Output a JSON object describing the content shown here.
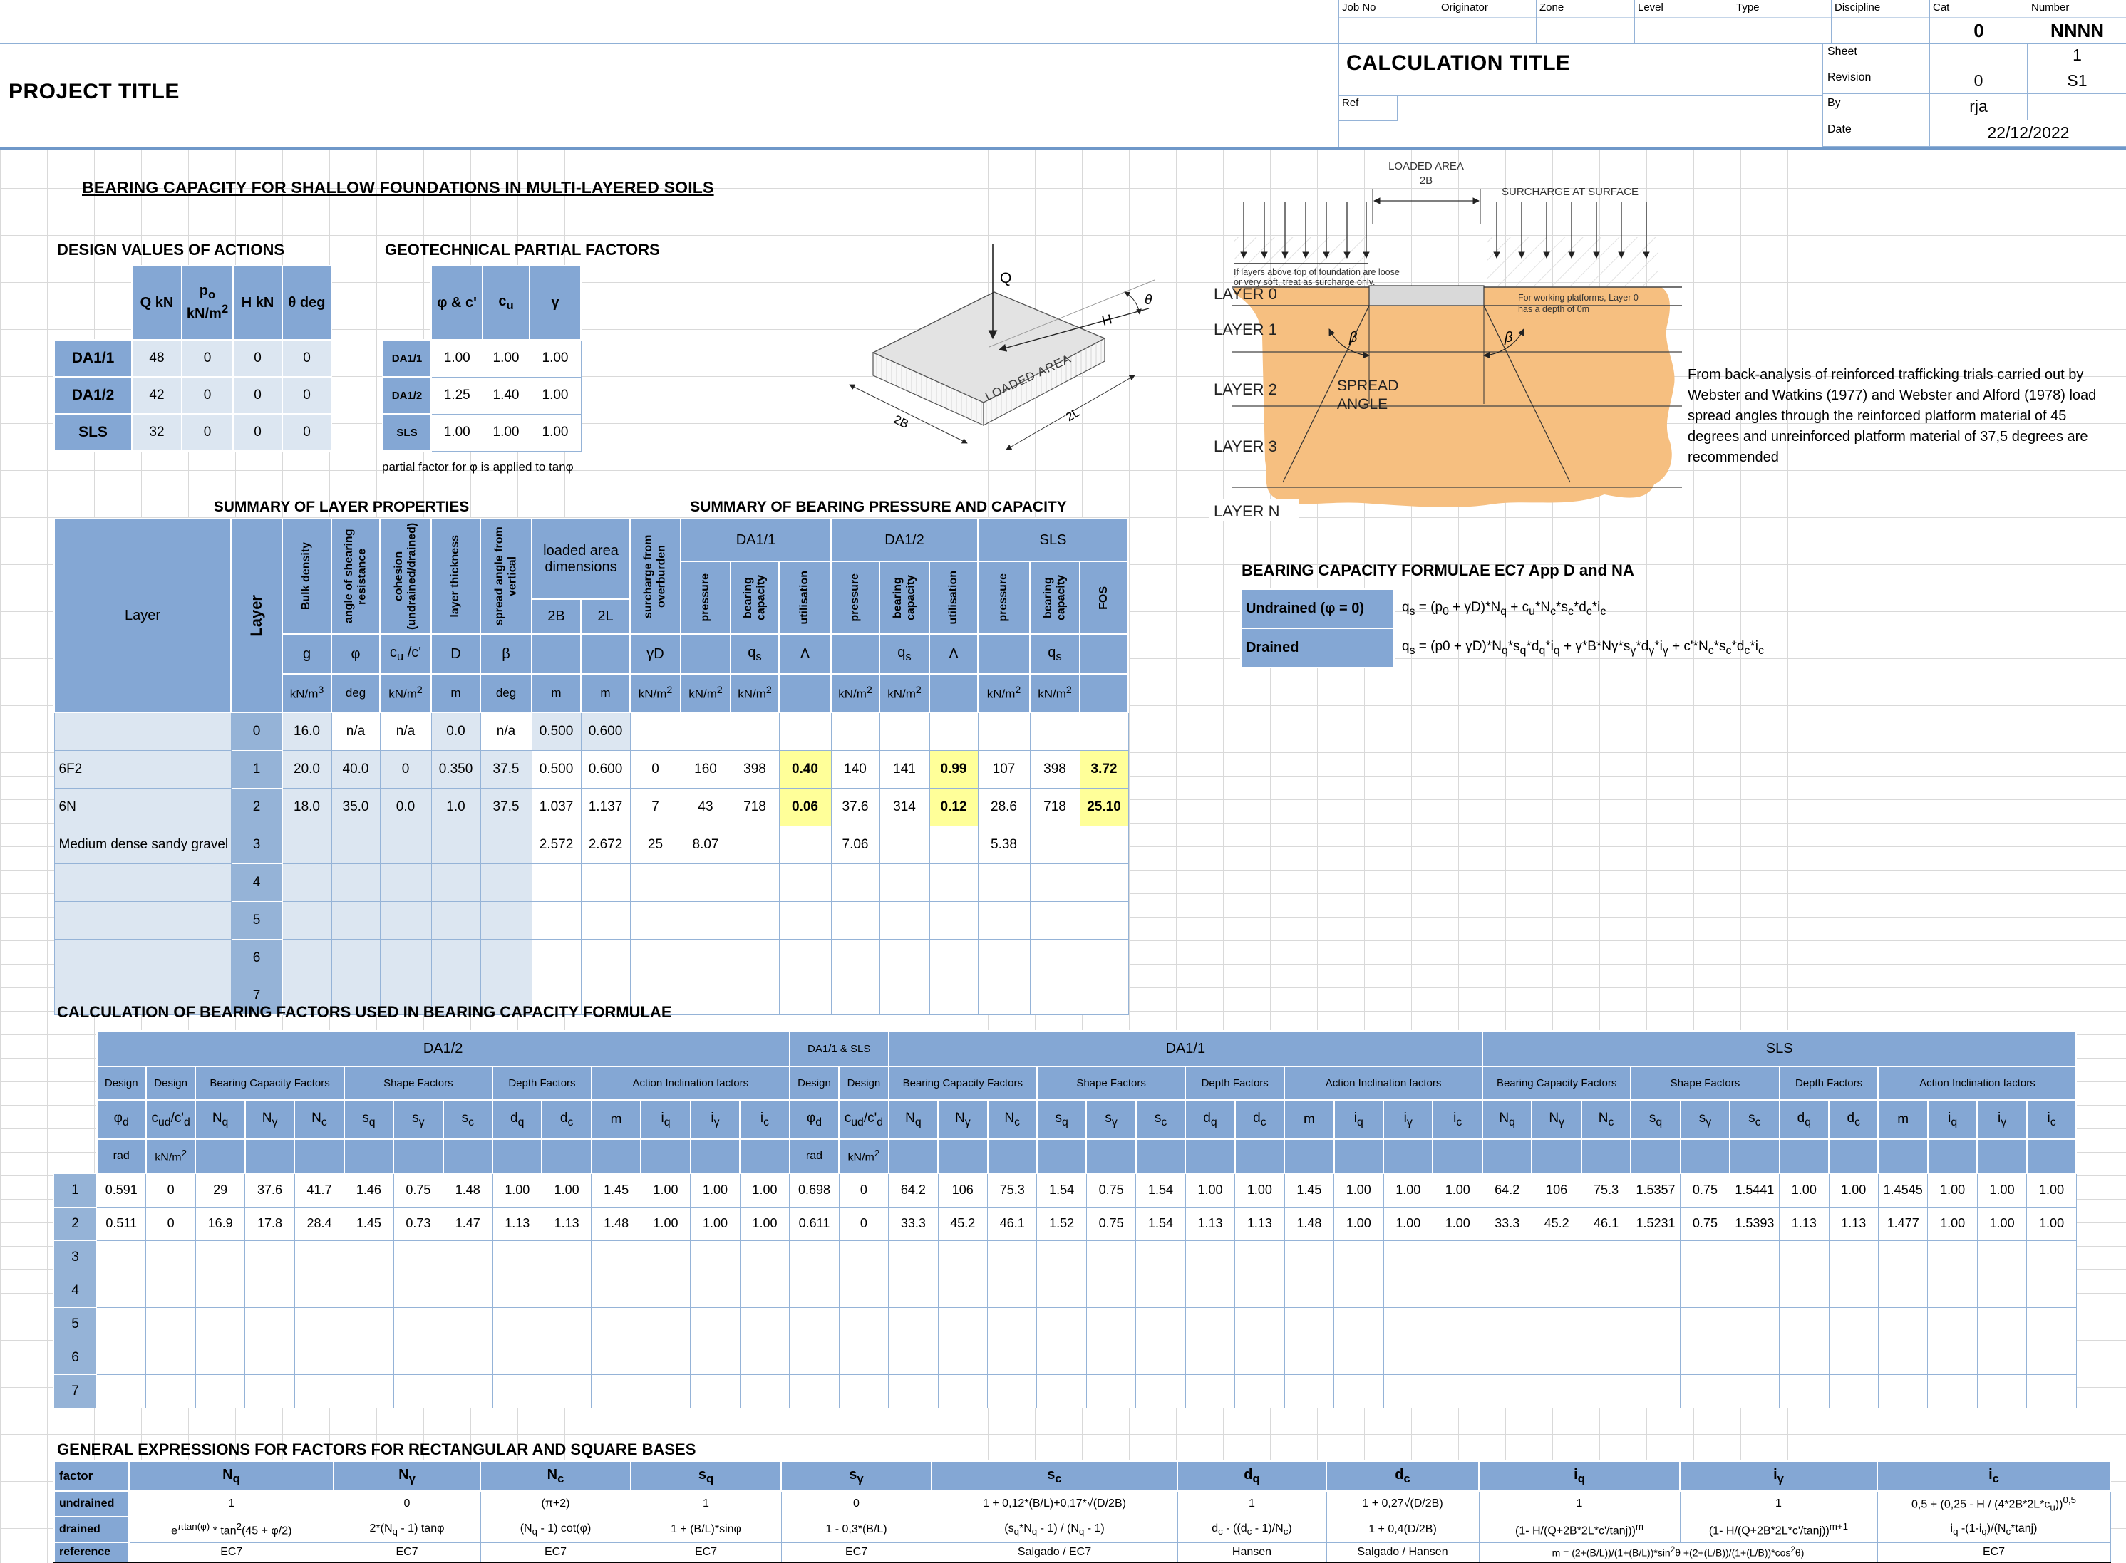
{
  "header": {
    "project_title": "PROJECT TITLE",
    "calculation_title": "CALCULATION TITLE",
    "fields": [
      "Job No",
      "Originator",
      "Zone",
      "Level",
      "Type",
      "Discipline",
      "Cat",
      "Number"
    ],
    "cat_value": "0",
    "number_value": "NNNN",
    "sheet_label": "Sheet",
    "sheet_value": "1",
    "revision_label": "Revision",
    "revision_value": "0",
    "revision_code": "S1",
    "ref_label": "Ref",
    "by_label": "By",
    "by_value": "rja",
    "date_label": "Date",
    "date_value": "22/12/2022"
  },
  "main_title": "BEARING CAPACITY FOR SHALLOW FOUNDATIONS IN MULTI-LAYERED SOILS",
  "actions": {
    "title": "DESIGN VALUES OF ACTIONS",
    "col_headers": [
      "Q kN",
      "p<sub>o</sub><br>kN/m<sup>2</sup>",
      "H kN",
      "θ deg"
    ],
    "rows": [
      {
        "label": "DA1/1",
        "values": [
          "48",
          "0",
          "0",
          "0"
        ]
      },
      {
        "label": "DA1/2",
        "values": [
          "42",
          "0",
          "0",
          "0"
        ]
      },
      {
        "label": "SLS",
        "values": [
          "32",
          "0",
          "0",
          "0"
        ]
      }
    ]
  },
  "partial_factors": {
    "title": "GEOTECHNICAL PARTIAL FACTORS",
    "col_headers": [
      "φ & c'",
      "c<sub>u</sub>",
      "γ"
    ],
    "rows": [
      {
        "label": "DA1/1",
        "values": [
          "1.00",
          "1.00",
          "1.00"
        ]
      },
      {
        "label": "DA1/2",
        "values": [
          "1.25",
          "1.40",
          "1.00"
        ]
      },
      {
        "label": "SLS",
        "values": [
          "1.00",
          "1.00",
          "1.00"
        ]
      }
    ],
    "note": "partial factor for φ is applied to tanφ"
  },
  "iso_diagram": {
    "load": "Q",
    "horizontal": "H",
    "angle": "θ",
    "area_label": "LOADED AREA",
    "dim_width": "2B",
    "dim_length": "2L"
  },
  "layers_diagram": {
    "loaded_area_label": "LOADED AREA",
    "dim_label": "2B",
    "surcharge_label": "SURCHARGE AT SURFACE",
    "note_left_1": "If layers above top of foundation are loose",
    "note_left_2": "or very soft, treat as surcharge only.",
    "note_right_1": "For working platforms, Layer 0",
    "note_right_2": "has a depth of 0m",
    "spread_1": "SPREAD",
    "spread_2": "ANGLE",
    "beta": "β",
    "layer_labels": [
      "LAYER 0",
      "LAYER 1",
      "LAYER 2",
      "LAYER 3",
      "LAYER N"
    ]
  },
  "webster_note": "From back-analysis of reinforced trafficking trials carried out by Webster and Watkins (1977) and Webster and Alford (1978) load spread angles through the reinforced platform material of 45 degrees and unreinforced platform material of 37,5 degrees are recommended",
  "layer_summary": {
    "title": "SUMMARY OF LAYER PROPERTIES",
    "corner_label": "Layer",
    "layer_col_label": "Layer",
    "columns": [
      {
        "rot": "Bulk density",
        "sym": "g",
        "unit": "kN/m<sup>3</sup>"
      },
      {
        "rot": "angle of shearing resistance",
        "sym": "φ",
        "unit": "deg"
      },
      {
        "rot": "cohesion (undrained/drained)",
        "sym": "c<sub>u</sub> /c'",
        "unit": "kN/m<sup>2</sup>"
      },
      {
        "rot": "layer thickness",
        "sym": "D",
        "unit": "m"
      },
      {
        "rot": "spread angle from vertical",
        "sym": "β",
        "unit": "deg"
      }
    ],
    "loaded_area_label": "loaded area dimensions",
    "dims": [
      {
        "sym": "2B",
        "unit": "m"
      },
      {
        "sym": "2L",
        "unit": "m"
      }
    ],
    "rows": [
      {
        "name": "",
        "num": "0",
        "values": [
          "16.0",
          "n/a",
          "n/a",
          "0.0",
          "n/a",
          "0.500",
          "0.600"
        ]
      },
      {
        "name": "6F2",
        "num": "1",
        "values": [
          "20.0",
          "40.0",
          "0",
          "0.350",
          "37.5",
          "0.500",
          "0.600"
        ]
      },
      {
        "name": "6N",
        "num": "2",
        "values": [
          "18.0",
          "35.0",
          "0.0",
          "1.0",
          "37.5",
          "1.037",
          "1.137"
        ]
      },
      {
        "name": "Medium dense sandy gravel",
        "num": "3",
        "values": [
          "",
          "",
          "",
          "",
          "",
          "2.572",
          "2.672"
        ]
      },
      {
        "name": "",
        "num": "4",
        "values": [
          "",
          "",
          "",
          "",
          "",
          "",
          ""
        ]
      },
      {
        "name": "",
        "num": "5",
        "values": [
          "",
          "",
          "",
          "",
          "",
          "",
          ""
        ]
      },
      {
        "name": "",
        "num": "6",
        "values": [
          "",
          "",
          "",
          "",
          "",
          "",
          ""
        ]
      },
      {
        "name": "",
        "num": "7",
        "values": [
          "",
          "",
          "",
          "",
          "",
          "",
          ""
        ]
      }
    ]
  },
  "bearing_summary": {
    "title": "SUMMARY OF BEARING PRESSURE AND CAPACITY",
    "surcharge": {
      "rot": "surcharge from overburden",
      "sym": "γD",
      "unit": "kN/m<sup>2</sup>"
    },
    "groups": [
      {
        "name": "DA1/1",
        "cols": [
          {
            "rot": "pressure",
            "sym": "",
            "unit": "kN/m<sup>2</sup>"
          },
          {
            "rot": "bearing capacity",
            "sym": "q<sub>s</sub>",
            "unit": "kN/m<sup>2</sup>"
          },
          {
            "rot": "utilisation",
            "sym": "Λ",
            "unit": ""
          }
        ]
      },
      {
        "name": "DA1/2",
        "cols": [
          {
            "rot": "pressure",
            "sym": "",
            "unit": "kN/m<sup>2</sup>"
          },
          {
            "rot": "bearing capacity",
            "sym": "q<sub>s</sub>",
            "unit": "kN/m<sup>2</sup>"
          },
          {
            "rot": "utilisation",
            "sym": "Λ",
            "unit": ""
          }
        ]
      },
      {
        "name": "SLS",
        "cols": [
          {
            "rot": "pressure",
            "sym": "",
            "unit": "kN/m<sup>2</sup>"
          },
          {
            "rot": "bearing capacity",
            "sym": "q<sub>s</sub>",
            "unit": "kN/m<sup>2</sup>"
          },
          {
            "rot": "FOS",
            "sym": "",
            "unit": ""
          }
        ]
      }
    ],
    "rows": [
      {
        "values": [
          "",
          "",
          "",
          "",
          "",
          "",
          "",
          "",
          "",
          ""
        ]
      },
      {
        "values": [
          "0",
          "160",
          "398",
          "0.40",
          "140",
          "141",
          "0.99",
          "107",
          "398",
          "3.72"
        ],
        "hl": [
          3,
          6,
          9
        ]
      },
      {
        "values": [
          "7",
          "43",
          "718",
          "0.06",
          "37.6",
          "314",
          "0.12",
          "28.6",
          "718",
          "25.10"
        ],
        "hl": [
          3,
          6,
          9
        ]
      },
      {
        "values": [
          "25",
          "8.07",
          "",
          "",
          "7.06",
          "",
          "",
          "5.38",
          "",
          ""
        ]
      },
      {
        "values": [
          "",
          "",
          "",
          "",
          "",
          "",
          "",
          "",
          "",
          ""
        ]
      },
      {
        "values": [
          "",
          "",
          "",
          "",
          "",
          "",
          "",
          "",
          "",
          ""
        ]
      },
      {
        "values": [
          "",
          "",
          "",
          "",
          "",
          "",
          "",
          "",
          "",
          ""
        ]
      },
      {
        "values": [
          "",
          "",
          "",
          "",
          "",
          "",
          "",
          "",
          "",
          ""
        ]
      }
    ]
  },
  "formulae": {
    "title": "BEARING CAPACITY FORMULAE EC7 App D and NA",
    "rows": [
      {
        "label": "Undrained (φ = 0)",
        "formula": "q<sub>s</sub> = (p<sub>0</sub> + γD)*N<sub>q</sub> + c<sub>u</sub>*N<sub>c</sub>*s<sub>c</sub>*d<sub>c</sub>*i<sub>c</sub>"
      },
      {
        "label": "Drained",
        "formula": "q<sub>s</sub> = (p0 + γD)*N<sub>q</sub>*s<sub>q</sub>*d<sub>q</sub>*i<sub>q</sub> + γ*B*Nγ*s<sub>γ</sub>*d<sub>γ</sub>*i<sub>γ</sub> + c'*N<sub>c</sub>*s<sub>c</sub>*d<sub>c</sub>*i<sub>c</sub>"
      }
    ]
  },
  "factors_table": {
    "title": "CALCULATION OF BEARING FACTORS USED IN BEARING CAPACITY FORMULAE",
    "supergroups": [
      "DA1/2",
      "DA1/1 & SLS",
      "DA1/1",
      "SLS"
    ],
    "group_row": [
      {
        "label": "Design",
        "span": 1
      },
      {
        "label": "Design",
        "span": 1
      },
      {
        "label": "Bearing Capacity Factors",
        "span": 3
      },
      {
        "label": "Shape Factors",
        "span": 3
      },
      {
        "label": "Depth Factors",
        "span": 2
      },
      {
        "label": "Action Inclination factors",
        "span": 4
      },
      {
        "label": "Design",
        "span": 1
      },
      {
        "label": "Design",
        "span": 1
      },
      {
        "label": "Bearing Capacity Factors",
        "span": 3
      },
      {
        "label": "Shape Factors",
        "span": 3
      },
      {
        "label": "Depth Factors",
        "span": 2
      },
      {
        "label": "Action Inclination factors",
        "span": 4
      },
      {
        "label": "Bearing Capacity Factors",
        "span": 3
      },
      {
        "label": "Shape Factors",
        "span": 3
      },
      {
        "label": "Depth Factors",
        "span": 2
      },
      {
        "label": "Action Inclination factors",
        "span": 4
      }
    ],
    "symbols": [
      "φ<sub>d</sub>",
      "c<sub>ud</sub>/c'<sub>d</sub>",
      "N<sub>q</sub>",
      "N<sub>γ</sub>",
      "N<sub>c</sub>",
      "s<sub>q</sub>",
      "s<sub>γ</sub>",
      "s<sub>c</sub>",
      "d<sub>q</sub>",
      "d<sub>c</sub>",
      "m",
      "i<sub>q</sub>",
      "i<sub>γ</sub>",
      "i<sub>c</sub>",
      "φ<sub>d</sub>",
      "c<sub>ud</sub>/c'<sub>d</sub>",
      "N<sub>q</sub>",
      "N<sub>γ</sub>",
      "N<sub>c</sub>",
      "s<sub>q</sub>",
      "s<sub>γ</sub>",
      "s<sub>c</sub>",
      "d<sub>q</sub>",
      "d<sub>c</sub>",
      "m",
      "i<sub>q</sub>",
      "i<sub>γ</sub>",
      "i<sub>c</sub>",
      "N<sub>q</sub>",
      "N<sub>γ</sub>",
      "N<sub>c</sub>",
      "s<sub>q</sub>",
      "s<sub>γ</sub>",
      "s<sub>c</sub>",
      "d<sub>q</sub>",
      "d<sub>c</sub>",
      "m",
      "i<sub>q</sub>",
      "i<sub>γ</sub>",
      "i<sub>c</sub>"
    ],
    "units": [
      "rad",
      "kN/m<sup>2</sup>",
      "",
      "",
      "",
      "",
      "",
      "",
      "",
      "",
      "",
      "",
      "",
      "",
      "rad",
      "kN/m<sup>2</sup>",
      "",
      "",
      "",
      "",
      "",
      "",
      "",
      "",
      "",
      "",
      "",
      "",
      "",
      "",
      "",
      "",
      "",
      "",
      "",
      "",
      "",
      "",
      "",
      ""
    ],
    "rows": [
      {
        "num": "1",
        "cells": [
          "0.591",
          "0",
          "29",
          "37.6",
          "41.7",
          "1.46",
          "0.75",
          "1.48",
          "1.00",
          "1.00",
          "1.45",
          "1.00",
          "1.00",
          "1.00",
          "0.698",
          "0",
          "64.2",
          "106",
          "75.3",
          "1.54",
          "0.75",
          "1.54",
          "1.00",
          "1.00",
          "1.45",
          "1.00",
          "1.00",
          "1.00",
          "64.2",
          "106",
          "75.3",
          "1.5357",
          "0.75",
          "1.5441",
          "1.00",
          "1.00",
          "1.4545",
          "1.00",
          "1.00",
          "1.00"
        ]
      },
      {
        "num": "2",
        "cells": [
          "0.511",
          "0",
          "16.9",
          "17.8",
          "28.4",
          "1.45",
          "0.73",
          "1.47",
          "1.13",
          "1.13",
          "1.48",
          "1.00",
          "1.00",
          "1.00",
          "0.611",
          "0",
          "33.3",
          "45.2",
          "46.1",
          "1.52",
          "0.75",
          "1.54",
          "1.13",
          "1.13",
          "1.48",
          "1.00",
          "1.00",
          "1.00",
          "33.3",
          "45.2",
          "46.1",
          "1.5231",
          "0.75",
          "1.5393",
          "1.13",
          "1.13",
          "1.477",
          "1.00",
          "1.00",
          "1.00"
        ]
      },
      {
        "num": "3",
        "cells": []
      },
      {
        "num": "4",
        "cells": []
      },
      {
        "num": "5",
        "cells": []
      },
      {
        "num": "6",
        "cells": []
      },
      {
        "num": "7",
        "cells": []
      }
    ]
  },
  "expressions": {
    "title": "GENERAL EXPRESSIONS FOR FACTORS FOR RECTANGULAR AND SQUARE BASES",
    "factor_label": "factor",
    "row_labels": [
      "undrained",
      "drained",
      "reference"
    ],
    "col_syms": [
      "N<sub>q</sub>",
      "N<sub>γ</sub>",
      "N<sub>c</sub>",
      "s<sub>q</sub>",
      "s<sub>γ</sub>",
      "s<sub>c</sub>",
      "d<sub>q</sub>",
      "d<sub>c</sub>",
      "i<sub>q</sub>",
      "i<sub>γ</sub>",
      "i<sub>c</sub>"
    ],
    "undrained": [
      "1",
      "0",
      "(π+2)",
      "1",
      "0",
      "1 + 0,12*(B/L)+0,17*√(D/2B)",
      "1",
      "1 + 0,27√(D/2B)",
      "1",
      "1",
      "0,5 + (0,25 - H / (4*2B*2L*c<sub>u</sub>))<sup>0,5</sup>"
    ],
    "drained": [
      "e<sup>πtan(φ)</sup> * tan<sup>2</sup>(45 + φ/2)",
      "2*(N<sub>q</sub> - 1) tanφ",
      "(N<sub>q</sub> - 1) cot(φ)",
      "1 + (B/L)*sinφ",
      "1 - 0,3*(B/L)",
      "(s<sub>q</sub>*N<sub>q</sub> - 1) / (N<sub>q</sub> - 1)",
      "d<sub>c</sub> - ((d<sub>c</sub> - 1)/N<sub>c</sub>)",
      "1 + 0,4(D/2B)",
      "(1- H/(Q+2B*2L*c'/tanj))<sup>m</sup>",
      "(1- H/(Q+2B*2L*c'/tanj))<sup>m+1</sup>",
      "i<sub>q</sub> -(1-i<sub>q</sub>)/(N<sub>c</sub>*tanj)"
    ],
    "reference": [
      "EC7",
      "EC7",
      "EC7",
      "EC7",
      "EC7",
      "Salgado / EC7",
      "Hansen",
      "Salgado / Hansen",
      {
        "span": 2,
        "text": "m = (2+(B/L))/(1+(B/L))*sin<sup>2</sup>θ +(2+(L/B))/(1+(L/B))*cos<sup>2</sup>θ)"
      },
      "EC7"
    ]
  }
}
